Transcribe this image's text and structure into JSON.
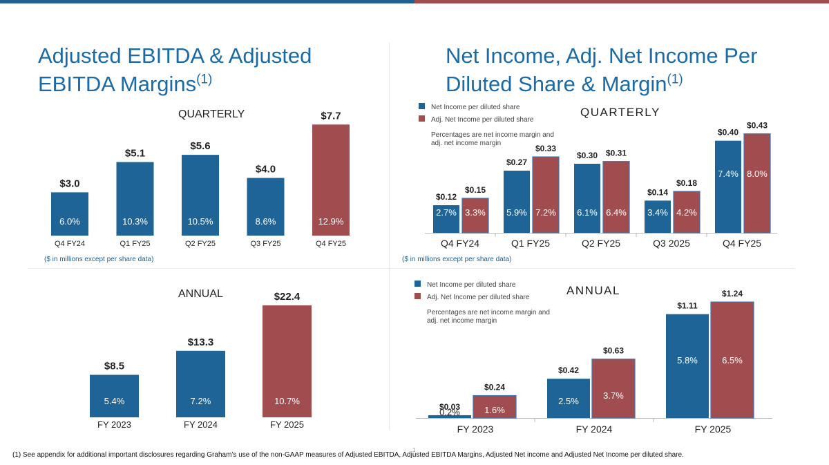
{
  "colors": {
    "blue": "#1f6497",
    "red": "#a14d4f",
    "title": "#1a6aa8",
    "text": "#222222"
  },
  "left_title": {
    "line1": "Adjusted EBITDA & Adjusted",
    "line2": "EBITDA Margins",
    "sup": "(1)"
  },
  "right_title": {
    "line1": "Net Income, Adj. Net Income Per",
    "line2": "Diluted Share & Margin",
    "sup": "(1)"
  },
  "notes": {
    "left": "($ in millions except per share data)",
    "right": "($ in millions except per share data)"
  },
  "footnote": "(1) See appendix for additional important disclosures regarding Graham’s use of the non-GAAP measures of Adjusted EBITDA, Adjusted EBITDA Margins, Adjusted Net income and Adjusted Net Income per diluted share.",
  "page_number": "1",
  "chart_data": [
    {
      "id": "ebitda-quarterly",
      "type": "bar",
      "title": "QUARTERLY",
      "categories": [
        "Q4 FY24",
        "Q1 FY25",
        "Q2 FY25",
        "Q3 FY25",
        "Q4 FY25"
      ],
      "values": [
        3.0,
        5.1,
        5.6,
        4.0,
        7.7
      ],
      "value_labels": [
        "$3.0",
        "$5.1",
        "$5.6",
        "$4.0",
        "$7.7"
      ],
      "margins": [
        "6.0%",
        "10.3%",
        "10.5%",
        "8.6%",
        "12.9%"
      ],
      "colors": [
        "blue",
        "blue",
        "blue",
        "blue",
        "red"
      ],
      "ylim": [
        0,
        8.0
      ]
    },
    {
      "id": "ebitda-annual",
      "type": "bar",
      "title": "ANNUAL",
      "categories": [
        "FY 2023",
        "FY 2024",
        "FY 2025"
      ],
      "values": [
        8.5,
        13.3,
        22.4
      ],
      "value_labels": [
        "$8.5",
        "$13.3",
        "$22.4"
      ],
      "margins": [
        "5.4%",
        "7.2%",
        "10.7%"
      ],
      "colors": [
        "blue",
        "blue",
        "red"
      ],
      "ylim": [
        0,
        23.5
      ]
    },
    {
      "id": "eps-quarterly",
      "type": "bar",
      "title": "QUARTERLY",
      "legend": [
        "Net Income per diluted share",
        "Adj. Net Income per diluted share"
      ],
      "legend_note": [
        "Percentages are net income margin and",
        "adj. net income margin"
      ],
      "categories": [
        "Q4 FY24",
        "Q1 FY25",
        "Q2 FY25",
        "Q3 2025",
        "Q4 FY25"
      ],
      "series": [
        {
          "name": "Net Income per diluted share",
          "values": [
            0.12,
            0.27,
            0.3,
            0.14,
            0.4
          ],
          "labels": [
            "$0.12",
            "$0.27",
            "$0.30",
            "$0.14",
            "$0.40"
          ],
          "margins": [
            "2.7%",
            "5.9%",
            "6.1%",
            "3.4%",
            "7.4%"
          ]
        },
        {
          "name": "Adj. Net Income per diluted share",
          "values": [
            0.15,
            0.33,
            0.31,
            0.18,
            0.43
          ],
          "labels": [
            "$0.15",
            "$0.33",
            "$0.31",
            "$0.18",
            "$0.43"
          ],
          "margins": [
            "3.3%",
            "7.2%",
            "6.4%",
            "4.2%",
            "8.0%"
          ]
        }
      ],
      "ylim": [
        0,
        0.45
      ]
    },
    {
      "id": "eps-annual",
      "type": "bar",
      "title": "ANNUAL",
      "legend": [
        "Net Income per diluted share",
        "Adj. Net Income per diluted share"
      ],
      "legend_note": [
        "Percentages are net income margin and",
        "adj. net income margin"
      ],
      "categories": [
        "FY 2023",
        "FY 2024",
        "FY 2025"
      ],
      "series": [
        {
          "name": "Net Income per diluted share",
          "values": [
            0.03,
            0.42,
            1.11
          ],
          "labels": [
            "$0.03",
            "$0.42",
            "$1.11"
          ],
          "margins": [
            "0.2%",
            "2.5%",
            "5.8%"
          ]
        },
        {
          "name": "Adj. Net Income per diluted share",
          "values": [
            0.24,
            0.63,
            1.24
          ],
          "labels": [
            "$0.24",
            "$0.63",
            "$1.24"
          ],
          "margins": [
            "1.6%",
            "3.7%",
            "6.5%"
          ]
        }
      ],
      "ylim": [
        0,
        1.27
      ]
    }
  ]
}
